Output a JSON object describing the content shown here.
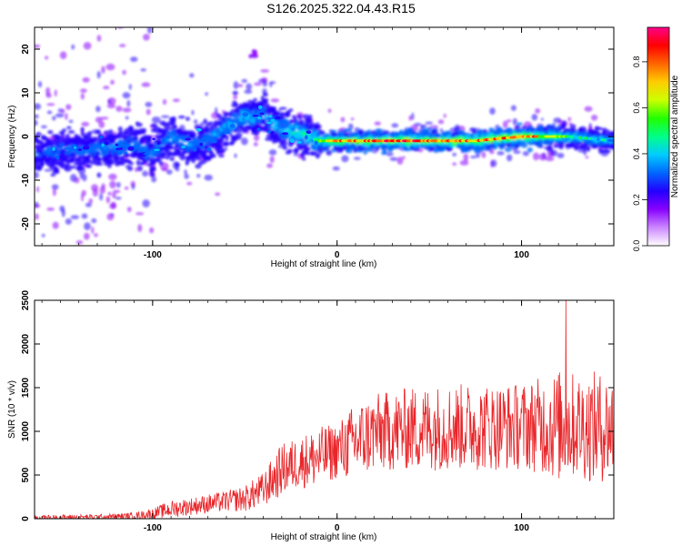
{
  "title": "S126.2025.322.04.43.R15",
  "chart_data": [
    {
      "type": "heatmap",
      "xlabel": "Height of straight line (km)",
      "ylabel": "Frequency (Hz)",
      "xlim": [
        -164,
        150
      ],
      "ylim": [
        -25,
        25
      ],
      "xticks": [
        -100,
        0,
        100
      ],
      "yticks": [
        -20,
        -10,
        0,
        10,
        20
      ],
      "colorbar": {
        "label": "Normalized spectral amplitude",
        "range": [
          0,
          0.95
        ],
        "ticks": [
          "0.0",
          "0.2",
          "0.4",
          "0.6",
          "0.8"
        ],
        "colors": [
          "#ffffff",
          "#cc88ff",
          "#8800ff",
          "#2200ff",
          "#0066ff",
          "#00ccff",
          "#00ff88",
          "#22ff00",
          "#ccff00",
          "#ffcc00",
          "#ff6600",
          "#ff0000",
          "#ff0088"
        ]
      },
      "ridge": {
        "x": [
          -164,
          -150,
          -130,
          -110,
          -100,
          -90,
          -80,
          -70,
          -60,
          -50,
          -45,
          -40,
          -35,
          -30,
          -25,
          -20,
          -15,
          -10,
          0,
          25,
          50,
          75,
          100,
          125,
          150
        ],
        "frequency": [
          -4,
          -3,
          -3,
          -2,
          -4,
          0,
          -2,
          -1,
          2,
          5,
          4,
          5,
          3,
          2,
          1,
          1,
          0,
          -1,
          -1,
          -1,
          -1,
          -1,
          0,
          0,
          -1
        ],
        "amplitude": [
          0.2,
          0.25,
          0.3,
          0.3,
          0.3,
          0.3,
          0.3,
          0.3,
          0.35,
          0.4,
          0.35,
          0.3,
          0.35,
          0.4,
          0.5,
          0.55,
          0.5,
          0.6,
          0.75,
          0.85,
          0.85,
          0.8,
          0.9,
          0.55,
          0.4
        ]
      }
    },
    {
      "type": "line",
      "xlabel": "Height of straight line (km)",
      "ylabel": "SNR (10 * v/v)",
      "xlim": [
        -164,
        150
      ],
      "ylim": [
        0,
        2500
      ],
      "xticks": [
        -100,
        0,
        100
      ],
      "yticks": [
        0,
        500,
        1000,
        1500,
        2000,
        2500
      ],
      "color": "#e8262a",
      "series": [
        {
          "x": [
            -164,
            -150,
            -130,
            -110,
            -100,
            -90,
            -80,
            -70,
            -60,
            -50,
            -40,
            -30,
            -20,
            -10,
            0,
            10,
            20,
            40,
            60,
            80,
            100,
            110,
            120,
            130,
            140,
            150
          ],
          "mean": [
            10,
            15,
            20,
            30,
            60,
            110,
            140,
            170,
            200,
            230,
            330,
            560,
            650,
            700,
            780,
            880,
            980,
            1030,
            1050,
            1050,
            1060,
            1070,
            1060,
            1070,
            1040,
            1050
          ],
          "spread": [
            30,
            30,
            30,
            40,
            60,
            100,
            100,
            110,
            120,
            150,
            200,
            300,
            300,
            350,
            320,
            450,
            450,
            480,
            500,
            500,
            500,
            550,
            650,
            600,
            650,
            600
          ],
          "peak": {
            "x": 124,
            "y": 2500
          }
        }
      ]
    }
  ]
}
